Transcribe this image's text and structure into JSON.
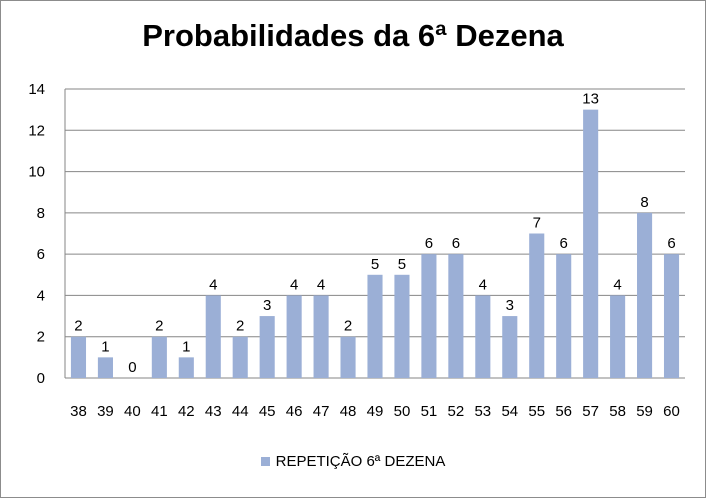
{
  "chart_data": {
    "type": "bar",
    "title": "Probabilidades da 6ª Dezena",
    "xlabel": "",
    "ylabel": "",
    "categories": [
      "38",
      "39",
      "40",
      "41",
      "42",
      "43",
      "44",
      "45",
      "46",
      "47",
      "48",
      "49",
      "50",
      "51",
      "52",
      "53",
      "54",
      "55",
      "56",
      "57",
      "58",
      "59",
      "60"
    ],
    "series": [
      {
        "name": "REPETIÇÃO 6ª DEZENA",
        "values": [
          2,
          1,
          0,
          2,
          1,
          4,
          2,
          3,
          4,
          4,
          2,
          5,
          5,
          6,
          6,
          4,
          3,
          7,
          6,
          13,
          4,
          8,
          6
        ]
      }
    ],
    "ylim": [
      0,
      14
    ],
    "yticks": [
      0,
      2,
      4,
      6,
      8,
      10,
      12,
      14
    ],
    "grid": true,
    "legend_position": "bottom",
    "data_labels": true,
    "bar_color": "#9bafd6"
  }
}
